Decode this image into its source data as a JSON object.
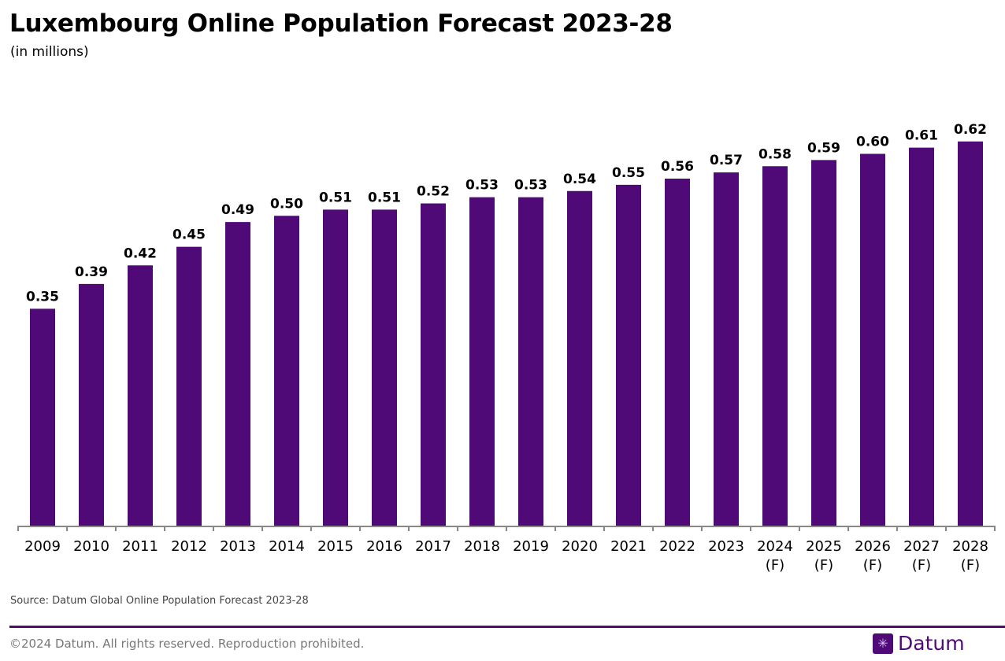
{
  "chart_data": {
    "type": "bar",
    "title": "Luxembourg Online Population Forecast 2023-28",
    "subtitle": "(in millions)",
    "categories": [
      "2009",
      "2010",
      "2011",
      "2012",
      "2013",
      "2014",
      "2015",
      "2016",
      "2017",
      "2018",
      "2019",
      "2020",
      "2021",
      "2022",
      "2023",
      "2024\n(F)",
      "2025\n(F)",
      "2026\n(F)",
      "2027\n(F)",
      "2028\n(F)"
    ],
    "values": [
      0.35,
      0.39,
      0.42,
      0.45,
      0.49,
      0.5,
      0.51,
      0.51,
      0.52,
      0.53,
      0.53,
      0.54,
      0.55,
      0.56,
      0.57,
      0.58,
      0.59,
      0.6,
      0.61,
      0.62
    ],
    "data_labels": [
      "0.35",
      "0.39",
      "0.42",
      "0.45",
      "0.49",
      "0.50",
      "0.51",
      "0.51",
      "0.52",
      "0.53",
      "0.53",
      "0.54",
      "0.55",
      "0.56",
      "0.57",
      "0.58",
      "0.59",
      "0.60",
      "0.61",
      "0.62"
    ],
    "ylim": [
      0,
      0.72
    ],
    "grid": false,
    "bar_color": "#4f0a78",
    "xlabel": "",
    "ylabel": ""
  },
  "footer": {
    "source": "Source: Datum Global Online Population Forecast 2023-28",
    "copyright": "©2024 Datum. All rights reserved. Reproduction prohibited.",
    "logo_text": "Datum",
    "logo_icon": "globe-grid-icon"
  }
}
